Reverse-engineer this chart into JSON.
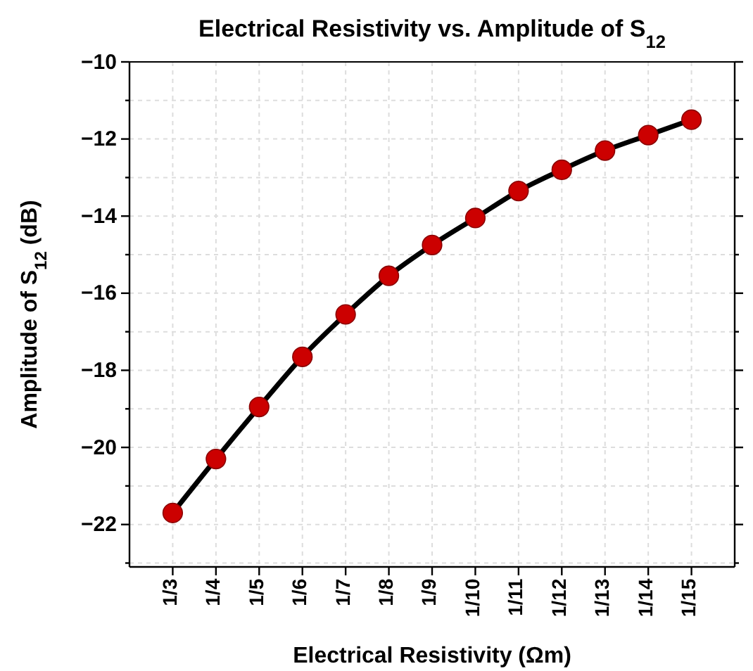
{
  "chart_data": {
    "type": "line",
    "title": "Electrical Resistivity vs. Amplitude of S$_{12}$",
    "xlabel": "Electrical Resistivity (Ωm)",
    "ylabel": "Amplitude of S$_{12}$ (dB)",
    "categories": [
      "1/3",
      "1/4",
      "1/5",
      "1/6",
      "1/7",
      "1/8",
      "1/9",
      "1/10",
      "1/11",
      "1/12",
      "1/13",
      "1/14",
      "1/15"
    ],
    "series": [
      {
        "color": "#cc0000",
        "values": [
          -21.7,
          -20.3,
          -18.95,
          -17.65,
          -16.55,
          -15.55,
          -14.75,
          -14.05,
          -13.35,
          -12.8,
          -12.3,
          -11.9,
          -11.5
        ]
      }
    ],
    "ylim": [
      -23.1,
      -10
    ],
    "yticks": [
      {
        "value": -23,
        "label": null
      },
      -22,
      {
        "value": -21,
        "label": null
      },
      -20,
      {
        "value": -19,
        "label": null
      },
      -18,
      {
        "value": -17,
        "label": null
      },
      -16,
      {
        "value": -15,
        "label": null
      },
      -14,
      {
        "value": -13,
        "label": null
      },
      -12,
      {
        "value": -11,
        "label": null
      },
      -10
    ],
    "grid": true,
    "marker": "circle",
    "line_style": "solid"
  }
}
